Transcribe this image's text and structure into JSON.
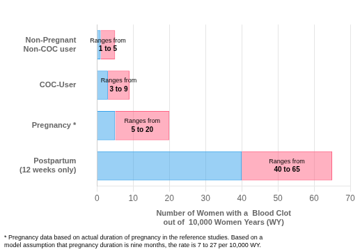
{
  "chart_data": {
    "type": "bar",
    "orientation": "horizontal",
    "categories": [
      "Postpartum\n(12 weeks only)",
      "Pregnancy *",
      "COC-User",
      "Non-Pregnant\nNon-COC user"
    ],
    "series": [
      {
        "values": [
          40,
          5,
          3,
          1
        ]
      },
      {
        "values": [
          [
            40,
            65
          ],
          [
            5,
            20
          ],
          [
            3,
            9
          ],
          [
            1,
            5
          ]
        ],
        "value_labels": [
          "Ranges from\n40 to 65",
          "Ranges from\n5 to 20",
          "Ranges from\n3 to 9",
          "Ranges from\n1 to 5"
        ]
      }
    ],
    "xlabel": "Number of Women with a  Blood Clot\nout of  10,000 Women Years (WY)",
    "xlim": [
      0,
      70
    ],
    "xticks": [
      0,
      10,
      20,
      30,
      40,
      50,
      60,
      70
    ],
    "grid": true,
    "data_labels": true,
    "footnote": "* Pregnancy data based on actual duration of pregnancy in the reference studies. Based on a\nmodel assumption that pregnancy duration is nine months, the rate is 7 to 27 per 10,000 WY."
  }
}
